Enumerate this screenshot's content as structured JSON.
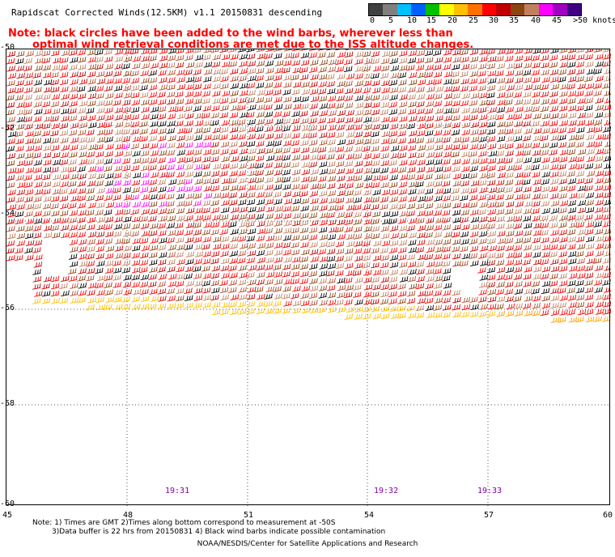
{
  "header": {
    "title": "Rapidscat Corrected Winds(12.5KM) v1.1 20150831 descending",
    "note_line1": "Note: black circles have been added to the wind barbs, wherever less than",
    "note_line2": "optimal wind retrieval conditions are met due to the ISS altitude changes."
  },
  "legend": {
    "colors": [
      "#404040",
      "#7f7f7f",
      "#00c0ff",
      "#0060ff",
      "#00c000",
      "#ffff00",
      "#ffc000",
      "#ff7000",
      "#ff0000",
      "#c00000",
      "#8b4513",
      "#c08060",
      "#ff00ff",
      "#a000c0",
      "#400080"
    ],
    "labels": [
      {
        "text": "0",
        "left": 457
      },
      {
        "text": "5",
        "left": 480
      },
      {
        "text": "10",
        "left": 503
      },
      {
        "text": "15",
        "left": 527
      },
      {
        "text": "20",
        "left": 553
      },
      {
        "text": "25",
        "left": 579
      },
      {
        "text": "30",
        "left": 604
      },
      {
        "text": "35",
        "left": 629
      },
      {
        "text": "40",
        "left": 656
      },
      {
        "text": "45",
        "left": 682
      },
      {
        "text": ">50 knots",
        "left": 708
      }
    ]
  },
  "axes": {
    "lat_labels": [
      {
        "text": "-50",
        "top": 53
      },
      {
        "text": "-52",
        "top": 153
      },
      {
        "text": "-54",
        "top": 258
      },
      {
        "text": "-56",
        "top": 375
      },
      {
        "text": "-58",
        "top": 493
      },
      {
        "text": "-60",
        "top": 617
      }
    ],
    "lon_labels": [
      {
        "text": "45",
        "left": 3
      },
      {
        "text": "48",
        "left": 152
      },
      {
        "text": "51",
        "left": 301
      },
      {
        "text": "54",
        "left": 450
      },
      {
        "text": "57",
        "left": 598
      },
      {
        "text": "60",
        "left": 745
      }
    ]
  },
  "times": [
    {
      "text": "19:31",
      "left": 204
    },
    {
      "text": "19:32",
      "left": 462
    },
    {
      "text": "19:33",
      "left": 590
    }
  ],
  "footer": {
    "note_line1": "Note: 1) Times are GMT 2)Times along bottom correspond to measurement at -50S",
    "note_line2": "3)Data buffer is 22 hrs from 20150831 4) Black wind barbs indicate possible contamination",
    "credit": "NOAA/NESDIS/Center for Satellite Applications and Research"
  }
}
